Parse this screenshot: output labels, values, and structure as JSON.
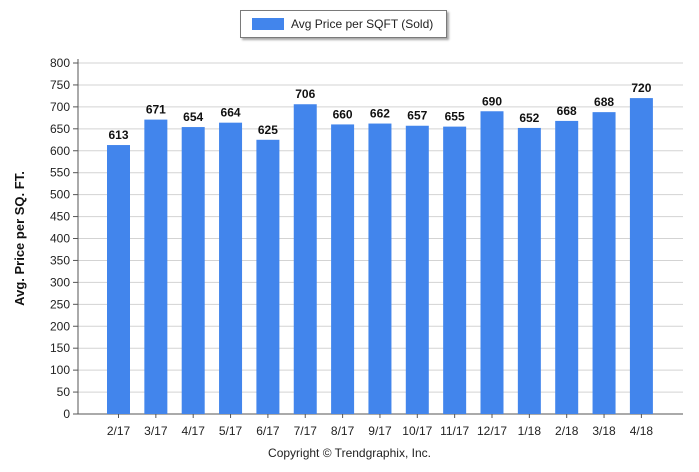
{
  "chart_data": {
    "type": "bar",
    "categories": [
      "2/17",
      "3/17",
      "4/17",
      "5/17",
      "6/17",
      "7/17",
      "8/17",
      "9/17",
      "10/17",
      "11/17",
      "12/17",
      "1/18",
      "2/18",
      "3/18",
      "4/18"
    ],
    "series": [
      {
        "name": "Avg Price per SQFT (Sold)",
        "values": [
          613,
          671,
          654,
          664,
          625,
          706,
          660,
          662,
          657,
          655,
          690,
          652,
          668,
          688,
          720
        ]
      }
    ],
    "ylabel": "Avg. Price per SQ. FT.",
    "ylim": [
      0,
      800
    ],
    "ytick_step": 50,
    "grid": true,
    "legend": "top-center",
    "bar_color": "#4285ec",
    "data_labels": true
  },
  "footer": {
    "copyright": "Copyright © Trendgraphix, Inc."
  }
}
